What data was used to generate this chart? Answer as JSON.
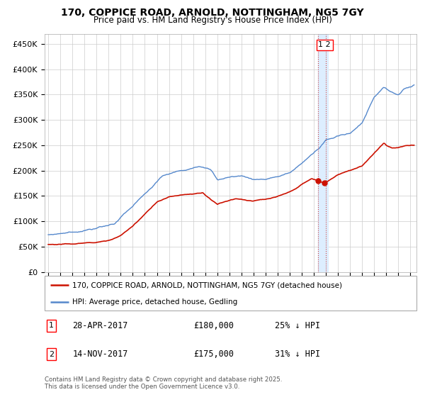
{
  "title": "170, COPPICE ROAD, ARNOLD, NOTTINGHAM, NG5 7GY",
  "subtitle": "Price paid vs. HM Land Registry's House Price Index (HPI)",
  "ylabel_ticks": [
    "£0",
    "£50K",
    "£100K",
    "£150K",
    "£200K",
    "£250K",
    "£300K",
    "£350K",
    "£400K",
    "£450K"
  ],
  "ytick_values": [
    0,
    50000,
    100000,
    150000,
    200000,
    250000,
    300000,
    350000,
    400000,
    450000
  ],
  "ylim": [
    0,
    470000
  ],
  "xlim_start": 1994.7,
  "xlim_end": 2025.5,
  "hpi_color": "#5588CC",
  "price_color": "#CC1100",
  "marker1_date": 2017.32,
  "marker2_date": 2017.87,
  "marker1_price": 180000,
  "marker2_price": 175000,
  "vband_color": "#DDEEFF",
  "vline_color": "#CC4444",
  "legend_line1": "170, COPPICE ROAD, ARNOLD, NOTTINGHAM, NG5 7GY (detached house)",
  "legend_line2": "HPI: Average price, detached house, Gedling",
  "footer": "Contains HM Land Registry data © Crown copyright and database right 2025.\nThis data is licensed under the Open Government Licence v3.0.",
  "background_color": "#FFFFFF",
  "grid_color": "#CCCCCC",
  "hpi_anchors": [
    [
      1995.0,
      73000
    ],
    [
      1996.0,
      76000
    ],
    [
      1997.5,
      80000
    ],
    [
      1999.0,
      86000
    ],
    [
      2000.5,
      96000
    ],
    [
      2002.0,
      130000
    ],
    [
      2003.5,
      165000
    ],
    [
      2004.5,
      190000
    ],
    [
      2006.0,
      200000
    ],
    [
      2007.5,
      210000
    ],
    [
      2008.5,
      200000
    ],
    [
      2009.0,
      182000
    ],
    [
      2010.0,
      187000
    ],
    [
      2011.0,
      190000
    ],
    [
      2012.0,
      183000
    ],
    [
      2013.0,
      183000
    ],
    [
      2014.0,
      188000
    ],
    [
      2015.0,
      195000
    ],
    [
      2016.0,
      215000
    ],
    [
      2017.0,
      235000
    ],
    [
      2017.5,
      245000
    ],
    [
      2018.0,
      260000
    ],
    [
      2019.0,
      270000
    ],
    [
      2020.0,
      272000
    ],
    [
      2021.0,
      295000
    ],
    [
      2022.0,
      345000
    ],
    [
      2022.8,
      365000
    ],
    [
      2023.5,
      355000
    ],
    [
      2024.0,
      350000
    ],
    [
      2024.5,
      360000
    ],
    [
      2025.3,
      370000
    ]
  ],
  "price_anchors": [
    [
      1995.0,
      54000
    ],
    [
      1996.0,
      55000
    ],
    [
      1997.0,
      56000
    ],
    [
      1998.0,
      57000
    ],
    [
      1999.0,
      58000
    ],
    [
      2000.0,
      63000
    ],
    [
      2001.0,
      72000
    ],
    [
      2002.0,
      90000
    ],
    [
      2003.0,
      115000
    ],
    [
      2004.0,
      138000
    ],
    [
      2005.0,
      148000
    ],
    [
      2006.0,
      152000
    ],
    [
      2007.0,
      154000
    ],
    [
      2007.8,
      157000
    ],
    [
      2008.5,
      143000
    ],
    [
      2009.0,
      133000
    ],
    [
      2009.5,
      138000
    ],
    [
      2010.5,
      145000
    ],
    [
      2012.0,
      140000
    ],
    [
      2013.0,
      143000
    ],
    [
      2014.0,
      148000
    ],
    [
      2015.0,
      158000
    ],
    [
      2016.0,
      172000
    ],
    [
      2016.8,
      184000
    ],
    [
      2017.32,
      180000
    ],
    [
      2017.87,
      175000
    ],
    [
      2018.2,
      180000
    ],
    [
      2019.0,
      192000
    ],
    [
      2020.0,
      200000
    ],
    [
      2021.0,
      210000
    ],
    [
      2022.0,
      235000
    ],
    [
      2022.8,
      255000
    ],
    [
      2023.0,
      250000
    ],
    [
      2023.5,
      245000
    ],
    [
      2024.0,
      245000
    ],
    [
      2024.5,
      248000
    ],
    [
      2025.3,
      250000
    ]
  ]
}
